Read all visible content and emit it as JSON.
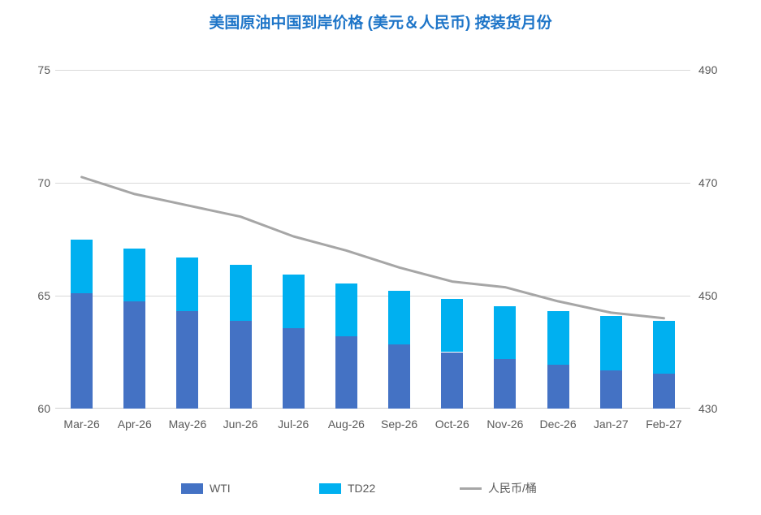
{
  "title": {
    "text": "美国原油中国到岸价格 (美元＆人民币) 按装货月份",
    "color": "#1E75C8"
  },
  "chart_data": {
    "type": "bar",
    "subtype": "stacked-bars-with-line",
    "title": "美国原油中国到岸价格 (美元＆人民币) 按装货月份",
    "categories": [
      "Mar-26",
      "Apr-26",
      "May-26",
      "Jun-26",
      "Jul-26",
      "Aug-26",
      "Sep-26",
      "Oct-26",
      "Nov-26",
      "Dec-26",
      "Jan-27",
      "Feb-27"
    ],
    "series": [
      {
        "name": "WTI",
        "type": "bar",
        "stack": "usd",
        "yaxis": "left",
        "color": "#4472C4",
        "values": [
          65.1,
          64.75,
          64.3,
          63.9,
          63.55,
          63.2,
          62.85,
          62.5,
          62.2,
          61.95,
          61.7,
          61.55
        ]
      },
      {
        "name": "TD22",
        "type": "bar",
        "stack": "usd",
        "yaxis": "left",
        "color": "#00B0F0",
        "values": [
          2.4,
          2.35,
          2.4,
          2.45,
          2.4,
          2.35,
          2.35,
          2.35,
          2.35,
          2.35,
          2.4,
          2.35
        ]
      },
      {
        "name": "人民币/桶",
        "type": "line",
        "yaxis": "right",
        "color": "#A6A6A6",
        "values": [
          471,
          468,
          466,
          464,
          460.5,
          458,
          455,
          452.5,
          451.5,
          449,
          447,
          446
        ]
      }
    ],
    "stack_totals": [
      67.5,
      67.1,
      66.7,
      66.35,
      65.95,
      65.55,
      65.2,
      64.85,
      64.55,
      64.3,
      64.1,
      63.9
    ],
    "axes": {
      "left": {
        "min": 60,
        "max": 75,
        "ticks": [
          75,
          70,
          65,
          60
        ]
      },
      "right": {
        "min": 430,
        "max": 490,
        "ticks": [
          490,
          470,
          450,
          430
        ]
      }
    },
    "grid": true,
    "gridline_color": "#D9D9D9",
    "axis_text_color": "#595959",
    "legend_position": "bottom",
    "legend_labels": [
      "WTI",
      "TD22",
      "人民币/桶"
    ]
  }
}
